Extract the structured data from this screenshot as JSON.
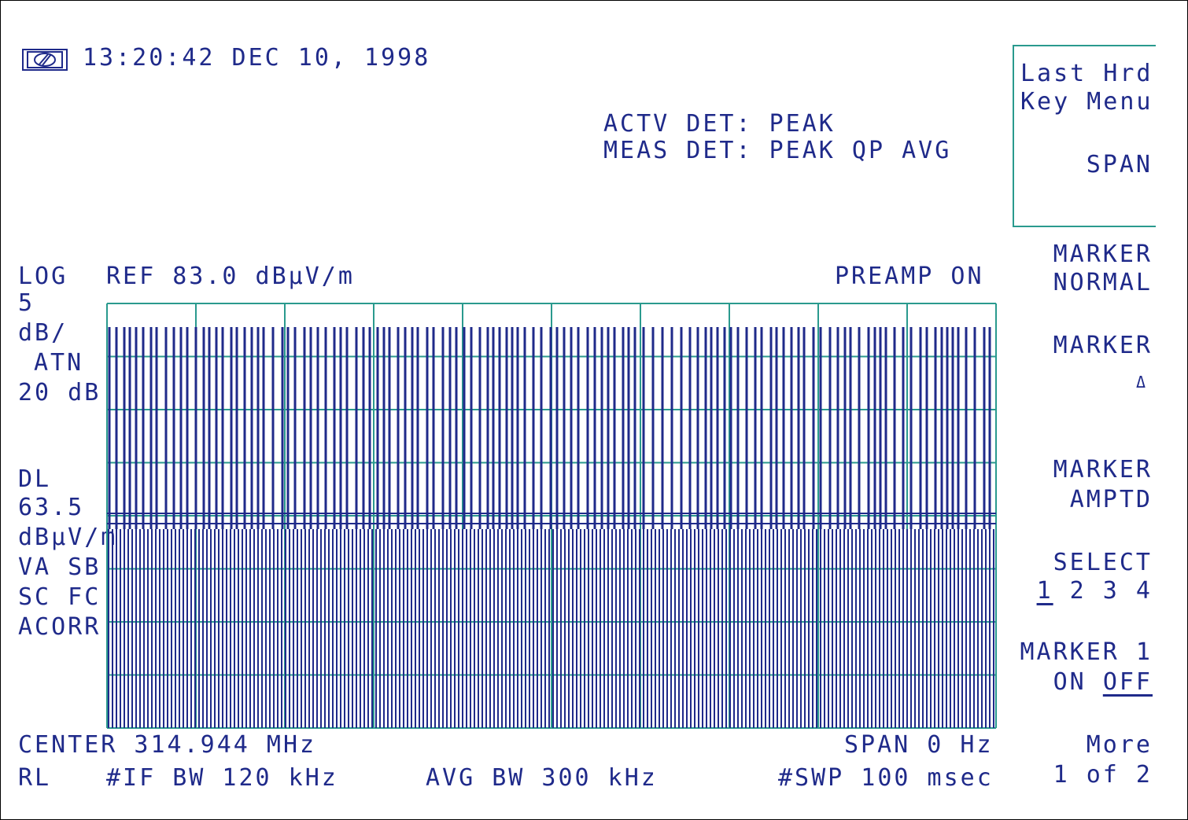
{
  "header": {
    "datetime": "13:20:42 DEC 10, 1998",
    "actv_det": "ACTV DET: PEAK",
    "meas_det": "MEAS DET: PEAK QP AVG"
  },
  "display": {
    "log_label": "LOG",
    "ref_label": "REF 83.0 dBµV/m",
    "preamp": "PREAMP ON",
    "scale_value": "5",
    "scale_unit": "dB/",
    "atn_label": "ATN",
    "atn_value": "20 dB",
    "dl_label": "DL",
    "dl_value": "63.5",
    "dl_unit": "dBµV/m",
    "va_sb": "VA SB",
    "sc_fc": "SC FC",
    "acorr": "ACORR",
    "center": "CENTER 314.944 MHz",
    "span": "SPAN 0 Hz",
    "rl": "RL",
    "if_bw": "#IF BW 120 kHz",
    "avg_bw": "AVG BW 300 kHz",
    "swp": "#SWP 100 msec"
  },
  "softkeys": {
    "last_hrd_line1": "Last Hrd",
    "last_hrd_line2": "Key Menu",
    "last_hrd_line3": "SPAN",
    "marker_normal_line1": "MARKER",
    "marker_normal_line2": "NORMAL",
    "marker_delta_line1": "MARKER",
    "marker_delta_line2": "Δ",
    "marker_amptd_line1": "MARKER",
    "marker_amptd_line2": "AMPTD",
    "select_line1": "SELECT",
    "select_opt1": "1",
    "select_opt_rest": " 2 3 4",
    "marker1_line1": "MARKER 1",
    "marker1_on": "ON ",
    "marker1_off": "OFF",
    "more_line1": "More",
    "more_line2": "1 of 2"
  },
  "colors": {
    "trace": "#1f2a8a",
    "grid": "#2a9a8e",
    "text": "#1f2a8a"
  }
}
